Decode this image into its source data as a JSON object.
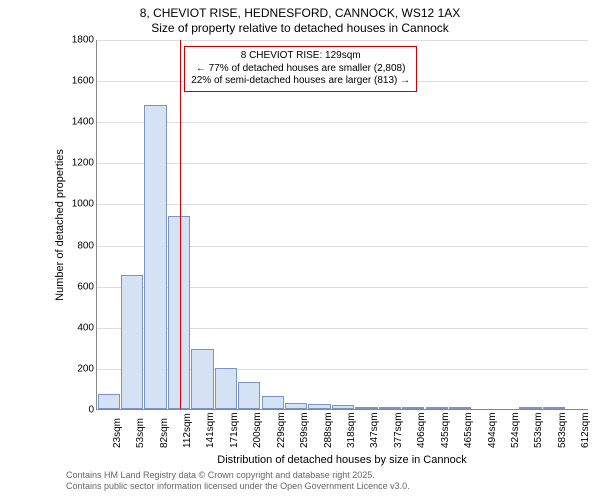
{
  "title_line1": "8, CHEVIOT RISE, HEDNESFORD, CANNOCK, WS12 1AX",
  "title_line2": "Size of property relative to detached houses in Cannock",
  "chart": {
    "type": "histogram",
    "ylabel": "Number of detached properties",
    "xlabel": "Distribution of detached houses by size in Cannock",
    "ylim": [
      0,
      1800
    ],
    "ytick_step": 200,
    "yticks": [
      0,
      200,
      400,
      600,
      800,
      1000,
      1200,
      1400,
      1600,
      1800
    ],
    "x_categories": [
      "23sqm",
      "53sqm",
      "82sqm",
      "112sqm",
      "141sqm",
      "171sqm",
      "200sqm",
      "229sqm",
      "259sqm",
      "288sqm",
      "318sqm",
      "347sqm",
      "377sqm",
      "406sqm",
      "435sqm",
      "465sqm",
      "494sqm",
      "524sqm",
      "553sqm",
      "583sqm",
      "612sqm"
    ],
    "bar_values": [
      75,
      650,
      1480,
      940,
      290,
      200,
      130,
      65,
      30,
      25,
      18,
      12,
      10,
      12,
      8,
      5,
      0,
      0,
      4,
      3,
      0
    ],
    "bar_fill": "#d5e2f3",
    "bar_border": "#7a94c4",
    "grid_color": "#dddddd",
    "axis_color": "#888888",
    "reference_line": {
      "x_category_index_between": [
        3,
        4
      ],
      "fraction_between": 0.55,
      "color": "#cc0000"
    },
    "callout": {
      "lines": [
        "8 CHEVIOT RISE: 129sqm",
        "← 77% of detached houses are smaller (2,808)",
        "22% of semi-detached houses are larger (813) →"
      ],
      "border_color": "#cc0000",
      "background": "#ffffff",
      "fontsize": 10
    }
  },
  "attribution": {
    "line1": "Contains HM Land Registry data © Crown copyright and database right 2025.",
    "line2": "Contains public sector information licensed under the Open Government Licence v3.0."
  }
}
